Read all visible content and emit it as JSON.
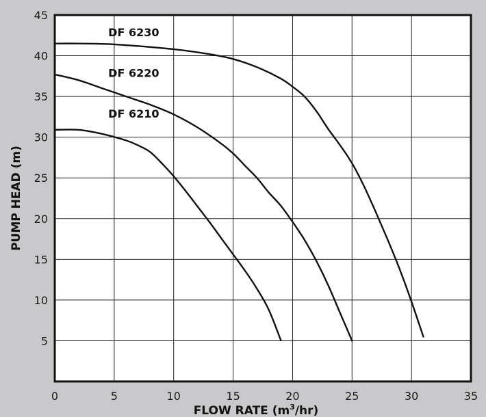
{
  "chart_data": {
    "type": "line",
    "xlabel_main": "FLOW RATE (m",
    "xlabel_sup": "3",
    "xlabel_end": "/hr)",
    "ylabel": "PUMP HEAD (m)",
    "xlim": [
      0,
      35
    ],
    "ylim": [
      0,
      45
    ],
    "x_ticks": [
      0,
      5,
      10,
      15,
      20,
      25,
      30,
      35
    ],
    "y_ticks": [
      5,
      10,
      15,
      20,
      25,
      30,
      35,
      40,
      45
    ],
    "grid": true,
    "series": [
      {
        "name": "DF 6230",
        "points": [
          [
            0,
            41.5
          ],
          [
            2,
            41.5
          ],
          [
            5,
            41.4
          ],
          [
            10,
            40.8
          ],
          [
            13,
            40.2
          ],
          [
            15,
            39.6
          ],
          [
            17,
            38.6
          ],
          [
            19,
            37.2
          ],
          [
            20,
            36.2
          ],
          [
            21,
            35.0
          ],
          [
            22,
            33.2
          ],
          [
            23,
            31.0
          ],
          [
            24,
            29.0
          ],
          [
            25,
            26.8
          ],
          [
            26,
            24.0
          ],
          [
            27,
            20.8
          ],
          [
            28,
            17.4
          ],
          [
            29,
            13.8
          ],
          [
            30,
            9.8
          ],
          [
            31,
            5.5
          ]
        ]
      },
      {
        "name": "DF 6220",
        "points": [
          [
            0,
            37.7
          ],
          [
            2,
            37.0
          ],
          [
            4,
            36.0
          ],
          [
            6,
            35.0
          ],
          [
            8,
            34.0
          ],
          [
            10,
            32.8
          ],
          [
            12,
            31.2
          ],
          [
            14,
            29.2
          ],
          [
            15,
            28.0
          ],
          [
            16,
            26.5
          ],
          [
            17,
            25.0
          ],
          [
            18,
            23.2
          ],
          [
            19,
            21.6
          ],
          [
            20,
            19.6
          ],
          [
            21,
            17.4
          ],
          [
            22,
            14.8
          ],
          [
            23,
            11.8
          ],
          [
            24,
            8.4
          ],
          [
            25,
            5.0
          ]
        ]
      },
      {
        "name": "DF 6210",
        "points": [
          [
            0,
            30.9
          ],
          [
            2,
            30.9
          ],
          [
            4,
            30.4
          ],
          [
            6,
            29.6
          ],
          [
            7,
            29.0
          ],
          [
            8,
            28.2
          ],
          [
            9,
            26.8
          ],
          [
            10,
            25.2
          ],
          [
            11,
            23.4
          ],
          [
            12,
            21.5
          ],
          [
            13,
            19.6
          ],
          [
            14,
            17.6
          ],
          [
            15,
            15.6
          ],
          [
            16,
            13.6
          ],
          [
            17,
            11.4
          ],
          [
            18,
            8.8
          ],
          [
            19,
            5.1
          ]
        ]
      }
    ],
    "series_label_pos": [
      [
        4.5,
        42.4
      ],
      [
        4.5,
        37.4
      ],
      [
        4.5,
        32.4
      ]
    ]
  }
}
